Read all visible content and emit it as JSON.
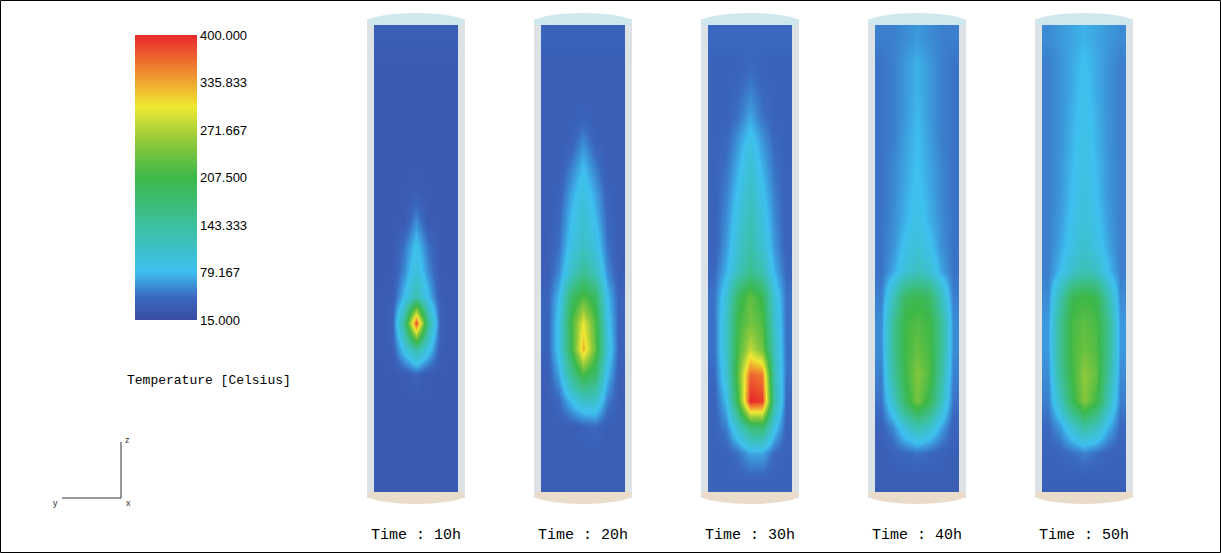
{
  "chart_data": {
    "type": "heatmap",
    "tick_labels": false,
    "colorbar": {
      "title": "Temperature [Celsius]",
      "range": [
        15,
        400
      ],
      "ticks": [
        {
          "value": 15,
          "label": "15.000"
        },
        {
          "value": 79.167,
          "label": "79.167"
        },
        {
          "value": 143.333,
          "label": "143.333"
        },
        {
          "value": 207.5,
          "label": "207.500"
        },
        {
          "value": 271.667,
          "label": "271.667"
        },
        {
          "value": 335.833,
          "label": "335.833"
        },
        {
          "value": 400,
          "label": "400.000"
        }
      ]
    },
    "axes_labels": [
      "z",
      "y",
      "x"
    ],
    "panels": [
      {
        "title": "Time : 10h",
        "cells": [
          [
            35,
            35,
            35,
            35,
            35,
            35,
            35
          ],
          [
            30,
            30,
            30,
            30,
            30,
            30,
            30
          ],
          [
            30,
            30,
            30,
            30,
            30,
            30,
            30
          ],
          [
            30,
            30,
            30,
            30,
            30,
            30,
            30
          ],
          [
            30,
            30,
            30,
            30,
            30,
            30,
            30
          ],
          [
            30,
            30,
            30,
            30,
            30,
            30,
            30
          ],
          [
            30,
            30,
            30,
            35,
            30,
            30,
            30
          ],
          [
            30,
            30,
            30,
            60,
            30,
            30,
            30
          ],
          [
            30,
            30,
            50,
            85,
            50,
            30,
            30
          ],
          [
            30,
            30,
            60,
            100,
            60,
            30,
            30
          ],
          [
            30,
            35,
            80,
            130,
            80,
            35,
            30
          ],
          [
            30,
            40,
            150,
            380,
            150,
            40,
            30
          ],
          [
            30,
            35,
            90,
            140,
            90,
            35,
            30
          ],
          [
            30,
            30,
            30,
            40,
            30,
            30,
            30
          ],
          [
            30,
            30,
            30,
            30,
            30,
            30,
            30
          ],
          [
            30,
            30,
            30,
            30,
            30,
            30,
            30
          ],
          [
            30,
            30,
            30,
            30,
            30,
            30,
            30
          ],
          [
            30,
            30,
            30,
            30,
            30,
            30,
            30
          ]
        ]
      },
      {
        "title": "Time : 20h",
        "cells": [
          [
            40,
            40,
            40,
            40,
            40,
            40,
            40
          ],
          [
            35,
            35,
            35,
            35,
            35,
            35,
            35
          ],
          [
            35,
            35,
            35,
            35,
            35,
            35,
            35
          ],
          [
            35,
            35,
            35,
            40,
            35,
            35,
            35
          ],
          [
            35,
            35,
            40,
            60,
            40,
            35,
            35
          ],
          [
            35,
            35,
            55,
            80,
            55,
            35,
            35
          ],
          [
            35,
            40,
            70,
            95,
            70,
            40,
            35
          ],
          [
            35,
            45,
            80,
            105,
            80,
            45,
            35
          ],
          [
            35,
            50,
            90,
            115,
            95,
            50,
            35
          ],
          [
            35,
            60,
            110,
            150,
            120,
            60,
            35
          ],
          [
            40,
            80,
            180,
            220,
            190,
            80,
            40
          ],
          [
            40,
            90,
            210,
            300,
            220,
            90,
            40
          ],
          [
            40,
            90,
            200,
            330,
            230,
            100,
            40
          ],
          [
            35,
            70,
            150,
            210,
            180,
            80,
            35
          ],
          [
            35,
            45,
            80,
            110,
            110,
            55,
            35
          ],
          [
            35,
            35,
            35,
            40,
            45,
            35,
            35
          ],
          [
            35,
            35,
            35,
            35,
            35,
            35,
            35
          ],
          [
            35,
            35,
            35,
            35,
            35,
            35,
            35
          ]
        ]
      },
      {
        "title": "Time : 30h",
        "cells": [
          [
            45,
            45,
            45,
            45,
            45,
            45,
            45
          ],
          [
            40,
            40,
            40,
            45,
            40,
            40,
            40
          ],
          [
            40,
            40,
            45,
            55,
            45,
            40,
            40
          ],
          [
            40,
            40,
            50,
            70,
            50,
            40,
            40
          ],
          [
            40,
            45,
            65,
            90,
            65,
            45,
            40
          ],
          [
            40,
            50,
            75,
            105,
            75,
            50,
            40
          ],
          [
            40,
            55,
            85,
            115,
            85,
            55,
            40
          ],
          [
            40,
            60,
            95,
            125,
            95,
            60,
            40
          ],
          [
            40,
            65,
            105,
            135,
            105,
            65,
            40
          ],
          [
            45,
            75,
            120,
            155,
            130,
            75,
            45
          ],
          [
            50,
            100,
            190,
            230,
            200,
            100,
            50
          ],
          [
            50,
            110,
            210,
            240,
            220,
            110,
            50
          ],
          [
            50,
            110,
            215,
            280,
            240,
            120,
            50
          ],
          [
            45,
            100,
            230,
            370,
            360,
            130,
            50
          ],
          [
            40,
            80,
            210,
            400,
            390,
            140,
            45
          ],
          [
            40,
            55,
            110,
            170,
            180,
            90,
            40
          ],
          [
            40,
            40,
            50,
            70,
            70,
            45,
            40
          ],
          [
            40,
            40,
            40,
            40,
            40,
            40,
            40
          ]
        ]
      },
      {
        "title": "Time : 40h",
        "cells": [
          [
            55,
            55,
            60,
            65,
            60,
            55,
            55
          ],
          [
            50,
            55,
            65,
            75,
            65,
            55,
            50
          ],
          [
            50,
            55,
            65,
            75,
            65,
            55,
            50
          ],
          [
            50,
            55,
            65,
            78,
            65,
            55,
            50
          ],
          [
            50,
            55,
            68,
            80,
            68,
            55,
            50
          ],
          [
            50,
            58,
            70,
            82,
            70,
            58,
            50
          ],
          [
            50,
            58,
            72,
            85,
            72,
            58,
            50
          ],
          [
            50,
            60,
            75,
            90,
            75,
            60,
            50
          ],
          [
            50,
            62,
            85,
            100,
            85,
            62,
            50
          ],
          [
            50,
            70,
            100,
            120,
            105,
            70,
            50
          ],
          [
            55,
            120,
            190,
            200,
            190,
            120,
            55
          ],
          [
            60,
            150,
            210,
            220,
            210,
            150,
            60
          ],
          [
            60,
            150,
            210,
            230,
            215,
            150,
            60
          ],
          [
            55,
            140,
            205,
            250,
            220,
            140,
            55
          ],
          [
            50,
            110,
            190,
            240,
            200,
            120,
            50
          ],
          [
            40,
            60,
            100,
            130,
            110,
            70,
            40
          ],
          [
            35,
            40,
            45,
            50,
            45,
            40,
            35
          ],
          [
            35,
            35,
            35,
            35,
            35,
            35,
            35
          ]
        ]
      },
      {
        "title": "Time : 50h",
        "cells": [
          [
            60,
            65,
            70,
            75,
            70,
            65,
            60
          ],
          [
            55,
            62,
            72,
            82,
            72,
            62,
            55
          ],
          [
            55,
            62,
            72,
            85,
            72,
            62,
            55
          ],
          [
            55,
            62,
            74,
            88,
            74,
            62,
            55
          ],
          [
            55,
            62,
            76,
            90,
            76,
            62,
            55
          ],
          [
            55,
            64,
            78,
            92,
            78,
            64,
            55
          ],
          [
            55,
            64,
            80,
            95,
            80,
            64,
            55
          ],
          [
            55,
            66,
            85,
            100,
            85,
            66,
            55
          ],
          [
            55,
            70,
            92,
            108,
            92,
            70,
            55
          ],
          [
            55,
            80,
            110,
            130,
            115,
            80,
            55
          ],
          [
            60,
            130,
            200,
            210,
            200,
            130,
            60
          ],
          [
            65,
            155,
            215,
            225,
            215,
            155,
            65
          ],
          [
            65,
            155,
            215,
            235,
            220,
            155,
            65
          ],
          [
            60,
            145,
            210,
            255,
            230,
            145,
            60
          ],
          [
            55,
            115,
            195,
            250,
            210,
            125,
            55
          ],
          [
            45,
            65,
            105,
            140,
            120,
            75,
            45
          ],
          [
            40,
            42,
            48,
            55,
            48,
            42,
            40
          ],
          [
            38,
            38,
            38,
            38,
            38,
            38,
            38
          ]
        ]
      }
    ]
  }
}
